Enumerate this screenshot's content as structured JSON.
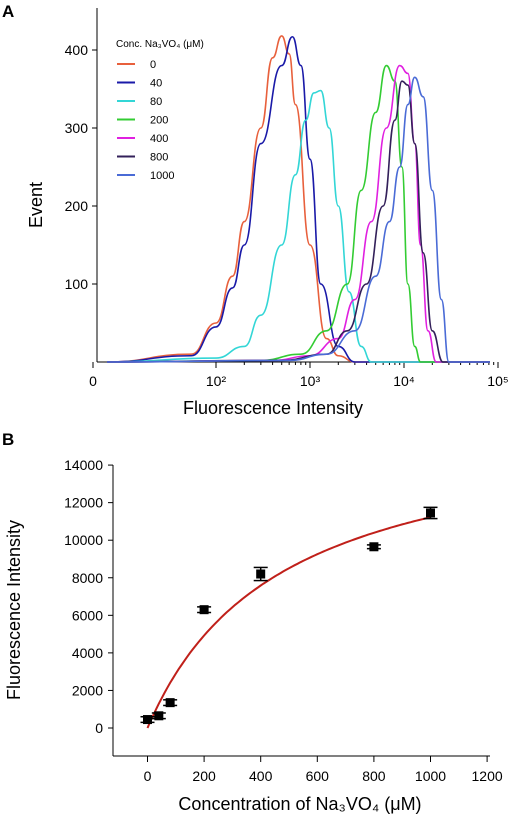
{
  "chart_data": [
    {
      "panel": "A",
      "type": "line",
      "xlabel": "Fluorescence Intensity",
      "ylabel": "Event",
      "x_scale": "log",
      "x_tick_labels": [
        "0",
        "10²",
        "10³",
        "10⁴",
        "10⁵"
      ],
      "y_ticks": [
        100,
        200,
        300,
        400
      ],
      "ylim": [
        0,
        450
      ],
      "legend_title": "Conc. Na₃VO₄ (μM)",
      "legend_position": "top-left",
      "series": [
        {
          "name": "0",
          "color": "#e8603c",
          "x": [
            -1,
            30,
            100,
            150,
            200,
            300,
            400,
            500,
            600,
            700,
            1000,
            1500,
            2000,
            3000
          ],
          "y": [
            0,
            10,
            50,
            110,
            180,
            300,
            390,
            418,
            395,
            330,
            150,
            30,
            8,
            0
          ]
        },
        {
          "name": "40",
          "color": "#1a1aa8",
          "x": [
            -1,
            30,
            100,
            150,
            200,
            300,
            500,
            650,
            800,
            1000,
            1300,
            2000,
            3000
          ],
          "y": [
            0,
            8,
            45,
            95,
            150,
            280,
            380,
            417,
            380,
            260,
            100,
            20,
            0
          ]
        },
        {
          "name": "80",
          "color": "#33d6d6",
          "x": [
            -1,
            100,
            200,
            300,
            500,
            700,
            900,
            1100,
            1300,
            1600,
            2000,
            2600,
            3500,
            4500
          ],
          "y": [
            0,
            5,
            20,
            60,
            150,
            240,
            310,
            345,
            348,
            300,
            200,
            90,
            20,
            0
          ]
        },
        {
          "name": "200",
          "color": "#33cc33",
          "x": [
            -1,
            300,
            800,
            1500,
            2500,
            3500,
            5000,
            6500,
            8000,
            9500,
            11000,
            13000,
            15000
          ],
          "y": [
            0,
            2,
            10,
            40,
            100,
            220,
            320,
            380,
            360,
            250,
            100,
            20,
            0
          ]
        },
        {
          "name": "400",
          "color": "#e020e0",
          "x": [
            -1,
            400,
            1000,
            2000,
            3000,
            4500,
            6500,
            9000,
            11000,
            13000,
            15000,
            18000,
            22000
          ],
          "y": [
            0,
            2,
            8,
            30,
            80,
            180,
            300,
            380,
            370,
            280,
            150,
            40,
            0
          ]
        },
        {
          "name": "800",
          "color": "#33205a",
          "x": [
            -1,
            500,
            1500,
            2500,
            4000,
            6000,
            8000,
            9500,
            11000,
            13000,
            16000,
            20000,
            26000
          ],
          "y": [
            0,
            2,
            10,
            40,
            100,
            200,
            310,
            360,
            355,
            280,
            140,
            40,
            0
          ]
        },
        {
          "name": "1000",
          "color": "#4a6bd6",
          "x": [
            -1,
            600,
            1500,
            3000,
            5000,
            7000,
            9000,
            11000,
            13000,
            16000,
            20000,
            25000,
            30000
          ],
          "y": [
            0,
            2,
            10,
            40,
            110,
            180,
            250,
            330,
            365,
            340,
            220,
            80,
            0
          ]
        }
      ]
    },
    {
      "panel": "B",
      "type": "scatter",
      "xlabel": "Concentration of Na₃VO₄ (μM)",
      "ylabel": "Fluorescence Intensity",
      "xlim": [
        -100,
        1200
      ],
      "ylim": [
        -1000,
        14000
      ],
      "x_ticks": [
        0,
        200,
        400,
        600,
        800,
        1000,
        1200
      ],
      "y_ticks": [
        0,
        2000,
        4000,
        6000,
        8000,
        10000,
        12000,
        14000
      ],
      "points": [
        {
          "x": 0,
          "y": 450,
          "err": 150
        },
        {
          "x": 40,
          "y": 650,
          "err": 150
        },
        {
          "x": 80,
          "y": 1350,
          "err": 150
        },
        {
          "x": 200,
          "y": 6300,
          "err": 150
        },
        {
          "x": 400,
          "y": 8200,
          "err": 350
        },
        {
          "x": 800,
          "y": 9650,
          "err": 100
        },
        {
          "x": 1000,
          "y": 11450,
          "err": 300
        }
      ],
      "fit": {
        "type": "hyperbolic",
        "vmax": 16500,
        "k": 470,
        "color": "#c0201a"
      }
    }
  ]
}
